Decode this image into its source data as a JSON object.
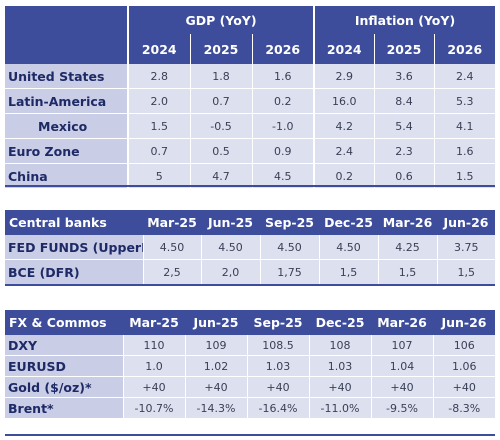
{
  "macro": {
    "group_headers": [
      "GDP (YoY)",
      "Inflation (YoY)"
    ],
    "years": [
      "2024",
      "2025",
      "2026",
      "2024",
      "2025",
      "2026"
    ],
    "rows": [
      {
        "label": "United States",
        "values": [
          "2.8",
          "1.8",
          "1.6",
          "2.9",
          "3.6",
          "2.4"
        ]
      },
      {
        "label": "Latin-America",
        "values": [
          "2.0",
          "0.7",
          "0.2",
          "16.0",
          "8.4",
          "5.3"
        ]
      },
      {
        "label": "Mexico",
        "values": [
          "1.5",
          "-0.5",
          "-1.0",
          "4.2",
          "5.4",
          "4.1"
        ]
      },
      {
        "label": "Euro Zone",
        "values": [
          "0.7",
          "0.5",
          "0.9",
          "2.4",
          "2.3",
          "1.6"
        ]
      },
      {
        "label": "China",
        "values": [
          "5",
          "4.7",
          "4.5",
          "0.2",
          "0.6",
          "1.5"
        ]
      }
    ]
  },
  "central_banks": {
    "title": "Central banks",
    "columns": [
      "Mar-25",
      "Jun-25",
      "Sep-25",
      "Dec-25",
      "Mar-26",
      "Jun-26"
    ],
    "rows": [
      {
        "label": "FED FUNDS (UpperB)",
        "values": [
          "4.50",
          "4.50",
          "4.50",
          "4.50",
          "4.25",
          "3.75"
        ]
      },
      {
        "label": "BCE (DFR)",
        "values": [
          "2,5",
          "2,0",
          "1,75",
          "1,5",
          "1,5",
          "1,5"
        ]
      }
    ]
  },
  "fx_commos": {
    "title": "FX & Commos",
    "columns": [
      "Mar-25",
      "Jun-25",
      "Sep-25",
      "Dec-25",
      "Mar-26",
      "Jun-26"
    ],
    "rows": [
      {
        "label": "DXY",
        "values": [
          "110",
          "109",
          "108.5",
          "108",
          "107",
          "106"
        ]
      },
      {
        "label": "EURUSD",
        "values": [
          "1.0",
          "1.02",
          "1.03",
          "1.03",
          "1.04",
          "1.06"
        ]
      },
      {
        "label": "Gold ($/oz)*",
        "values": [
          "+40",
          "+40",
          "+40",
          "+40",
          "+40",
          "+40"
        ]
      },
      {
        "label": "Brent*",
        "values": [
          "-10.7%",
          "-14.3%",
          "-16.4%",
          "-11.0%",
          "-9.5%",
          "-8.3%"
        ]
      }
    ]
  }
}
